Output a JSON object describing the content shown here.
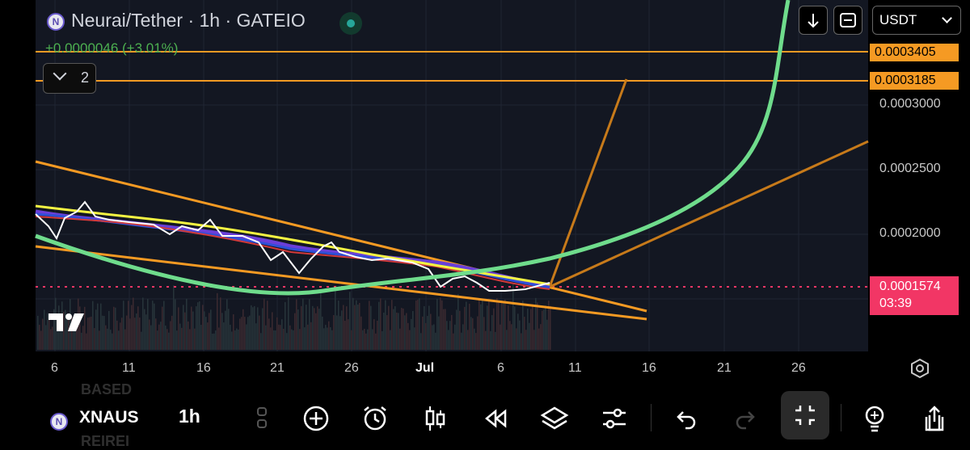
{
  "header": {
    "symbol_title": "Neurai/Tether · 1h · GATEIO",
    "logo_letter": "N",
    "change": "+0.0000046 (+3.01%)",
    "legend_count": "2",
    "currency": "USDT"
  },
  "price_scale": {
    "ticks": [
      "0.0003000",
      "0.0002500",
      "0.0002000"
    ],
    "alert_labels": [
      "0.0003405",
      "0.0003185"
    ],
    "current_price": "0.0001574",
    "countdown": "03:39"
  },
  "time_scale": {
    "ticks": [
      "6",
      "11",
      "16",
      "21",
      "26",
      "Jul",
      "6",
      "11",
      "16",
      "21",
      "26"
    ]
  },
  "bottom_toolbar": {
    "symbol": "XNAUS",
    "ghost_above": "BASED",
    "ghost_below": "REIREI",
    "interval": "1h"
  },
  "colors": {
    "background": "#000000",
    "chart_bg": "#131722",
    "orange": "#f59a23",
    "green_curve": "#6fdc8c",
    "yellow_ma": "#f5f542",
    "current_price": "#f23665",
    "change_green": "#4caf50"
  },
  "icons": [
    "download-arrow-icon",
    "fit-screen-icon",
    "chevron-down-icon",
    "plus-circle-icon",
    "alarm-icon",
    "candles-icon",
    "rewind-icon",
    "layers-icon",
    "settings-sliders-icon",
    "undo-icon",
    "redo-icon",
    "collapse-icon",
    "lightbulb-icon",
    "share-icon",
    "tradingview-logo-icon",
    "settings-gear-icon"
  ]
}
